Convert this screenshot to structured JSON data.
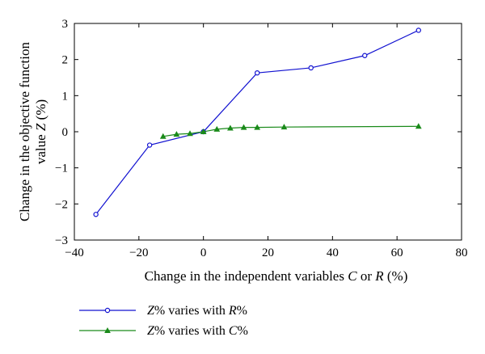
{
  "chart_data": {
    "type": "line",
    "xlabel": "Change in the independent variables C or R (%)",
    "xlabel_parts": [
      "Change in the independent variables ",
      "C",
      " or ",
      "R",
      " (%)"
    ],
    "ylabel_line1": "Change in the objective function",
    "ylabel_line2_parts": [
      "value ",
      "Z",
      " (%)"
    ],
    "xlim": [
      -40,
      80
    ],
    "ylim": [
      -3,
      3
    ],
    "xticks": [
      -40,
      -20,
      0,
      20,
      40,
      60,
      80
    ],
    "yticks": [
      -3,
      -2,
      -1,
      0,
      1,
      2,
      3
    ],
    "grid": false,
    "legend_position": "below",
    "series": [
      {
        "name": "Z% varies with R%",
        "name_parts": [
          "Z",
          "% varies with ",
          "R",
          "%"
        ],
        "color": "#1010d0",
        "marker": "circle",
        "x": [
          -33.33,
          -16.67,
          0,
          16.67,
          33.33,
          50,
          66.67
        ],
        "y": [
          -2.29,
          -0.37,
          0.0,
          1.63,
          1.77,
          2.11,
          2.81
        ]
      },
      {
        "name": "Z% varies with C%",
        "name_parts": [
          "Z",
          "% varies with ",
          "C",
          "%"
        ],
        "color": "#1a8a1a",
        "marker": "triangle",
        "x": [
          -12.5,
          -8.33,
          -4.17,
          0,
          4.17,
          8.33,
          12.5,
          16.67,
          25,
          66.67
        ],
        "y": [
          -0.13,
          -0.07,
          -0.05,
          0.0,
          0.07,
          0.1,
          0.12,
          0.12,
          0.13,
          0.15
        ]
      }
    ]
  }
}
